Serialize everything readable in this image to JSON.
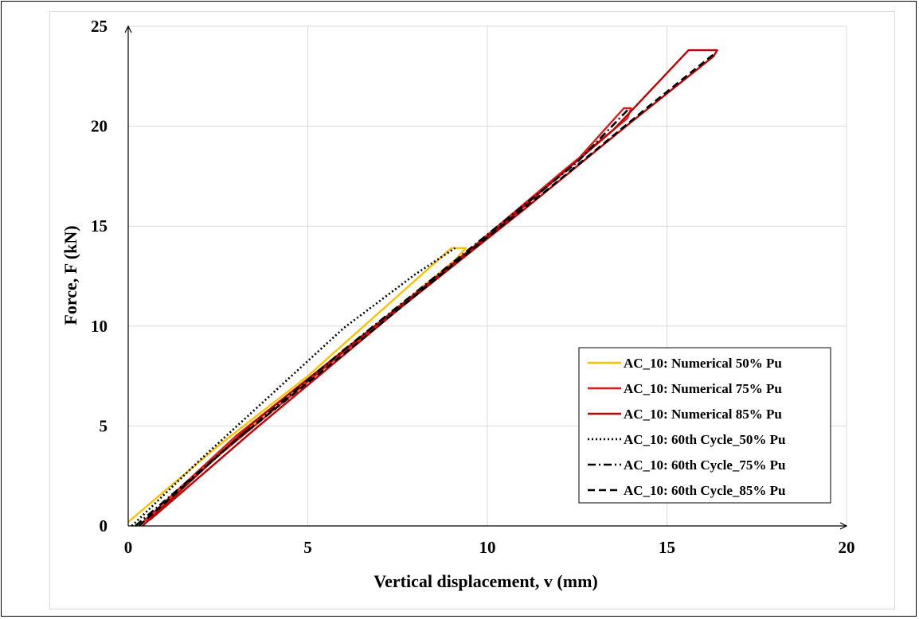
{
  "chart_data": {
    "type": "line",
    "title": "",
    "xlabel": "Vertical displacement, v (mm)",
    "ylabel": "Force, F (kN)",
    "xlim": [
      0,
      20
    ],
    "ylim": [
      0,
      25
    ],
    "x_ticks": [
      "0",
      "5",
      "10",
      "15",
      "20"
    ],
    "y_ticks": [
      "0",
      "5",
      "10",
      "15",
      "20",
      "25"
    ],
    "grid": true,
    "legend_position": "right",
    "series": [
      {
        "name": "AC_10: Numerical 50% Pu",
        "color": "#FFC000",
        "dash": "solid",
        "x": [
          0.0,
          2.5,
          5.0,
          7.5,
          9.0,
          9.4,
          9.1,
          7.0,
          4.0,
          1.5,
          0.3
        ],
        "y": [
          0.2,
          4.0,
          7.5,
          11.5,
          13.9,
          13.9,
          13.3,
          10.2,
          5.9,
          2.0,
          0.0
        ]
      },
      {
        "name": "AC_10: Numerical 75% Pu",
        "color": "#E31A1C",
        "dash": "solid",
        "x": [
          0.3,
          3.0,
          6.5,
          10.0,
          12.5,
          13.8,
          14.0,
          13.9,
          12.0,
          9.5,
          6.0,
          2.5,
          0.5
        ],
        "y": [
          0.0,
          4.5,
          9.5,
          14.4,
          18.3,
          20.9,
          20.9,
          20.4,
          17.6,
          13.8,
          8.7,
          3.5,
          0.2
        ]
      },
      {
        "name": "AC_10: Numerical 85% Pu",
        "color": "#C00000",
        "dash": "solid",
        "x": [
          0.4,
          3.5,
          7.0,
          10.5,
          13.5,
          15.6,
          16.4,
          16.3,
          14.0,
          11.0,
          7.5,
          3.5,
          0.6
        ],
        "y": [
          0.0,
          5.2,
          10.2,
          15.2,
          19.8,
          23.8,
          23.8,
          23.5,
          20.2,
          15.8,
          10.8,
          4.8,
          0.3
        ]
      },
      {
        "name": "AC_10: 60th Cycle_50% Pu",
        "color": "#000000",
        "dash": "dotted",
        "x": [
          0.1,
          2.0,
          4.0,
          6.0,
          8.0,
          9.1
        ],
        "y": [
          0.0,
          3.3,
          6.6,
          9.9,
          12.6,
          13.9
        ]
      },
      {
        "name": "AC_10: 60th Cycle_75% Pu",
        "color": "#000000",
        "dash": "dashdot",
        "x": [
          0.2,
          3.0,
          6.0,
          8.5,
          10.5,
          12.5,
          13.9
        ],
        "y": [
          0.0,
          4.3,
          8.8,
          12.4,
          15.3,
          18.2,
          20.8
        ]
      },
      {
        "name": "AC_10: 60th Cycle_85% Pu",
        "color": "#000000",
        "dash": "dashed",
        "x": [
          0.3,
          3.0,
          6.0,
          9.0,
          12.0,
          14.5,
          16.3
        ],
        "y": [
          0.0,
          4.3,
          8.6,
          13.0,
          17.3,
          21.0,
          23.6
        ]
      }
    ]
  }
}
